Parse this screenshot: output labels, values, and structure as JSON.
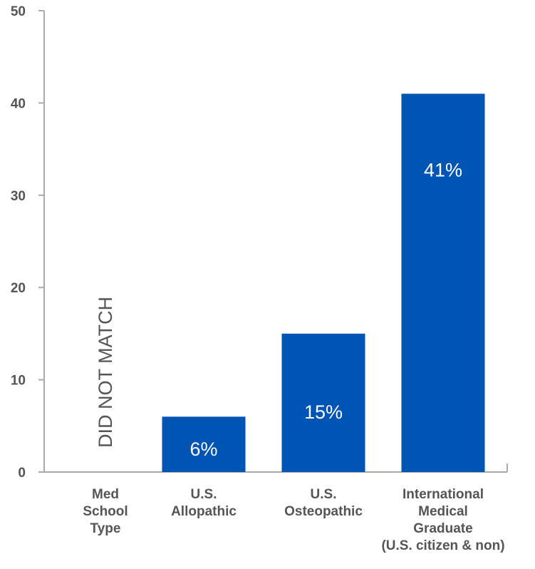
{
  "chart_data": {
    "type": "bar",
    "axis_title_label": [
      "Med",
      "School",
      "Type"
    ],
    "annotation": "DID NOT MATCH",
    "categories": [
      [
        "U.S.",
        "Allopathic"
      ],
      [
        "U.S.",
        "Osteopathic"
      ],
      [
        "International",
        "Medical",
        "Graduate",
        "(U.S. citizen & non)"
      ]
    ],
    "values": [
      6,
      15,
      41
    ],
    "value_labels": [
      "6%",
      "15%",
      "41%"
    ],
    "ylim": [
      0,
      50
    ],
    "yticks": [
      0,
      10,
      20,
      30,
      40,
      50
    ],
    "grid": false,
    "legend": "none",
    "colors": {
      "bar": "#0054b4",
      "axis": "#aaaaaa",
      "text": "#555555",
      "bar_label": "#ffffff"
    }
  }
}
